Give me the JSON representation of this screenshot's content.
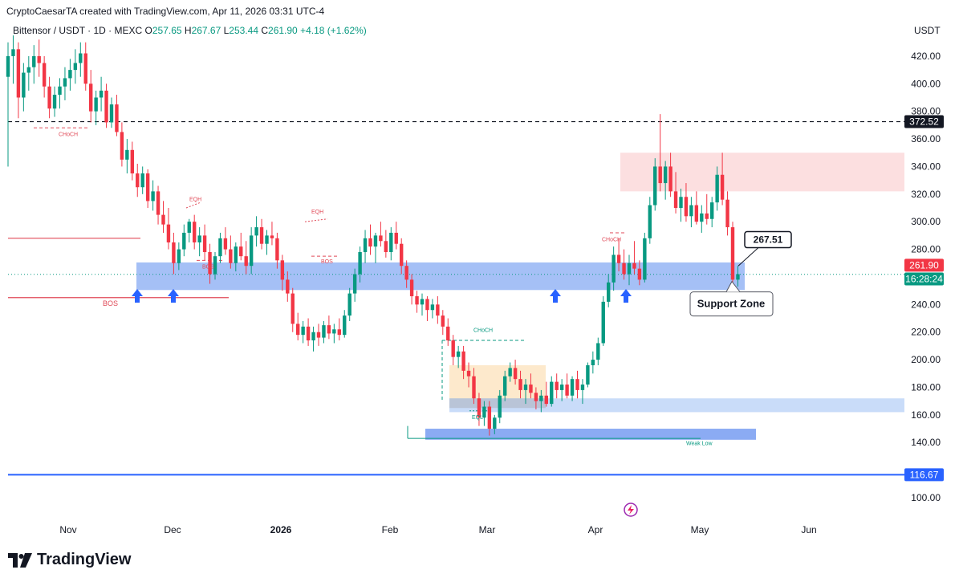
{
  "header": {
    "caption": "CryptoCaesarTA created with TradingView.com, Apr 11, 2026 03:31 UTC-4",
    "symbol": "Bittensor / USDT · 1D · MEXC",
    "o_label": "O",
    "o": "257.65",
    "h_label": "H",
    "h": "267.67",
    "l_label": "L",
    "l": "253.44",
    "c_label": "C",
    "c": "261.90",
    "change": "+4.18 (+1.62%)",
    "currency": "USDT"
  },
  "colors": {
    "up": "#089981",
    "down": "#f23645",
    "support_zone": "#5b8def",
    "supply_zone": "#fbd9da",
    "accumulation": "#fde7c6",
    "blue_line": "#2962ff",
    "arrow": "#2962ff"
  },
  "logo": {
    "text": "TradingView",
    "icon": "tradingview-logo-icon"
  },
  "chart_data": {
    "type": "candlestick",
    "x_ticks": [
      "Nov",
      "Dec",
      "2026",
      "Feb",
      "Mar",
      "Apr",
      "May",
      "Jun"
    ],
    "y_ticks": [
      "420.00",
      "400.00",
      "380.00",
      "360.00",
      "340.00",
      "320.00",
      "300.00",
      "280.00",
      "240.00",
      "220.00",
      "200.00",
      "180.00",
      "160.00",
      "140.00",
      "100.00"
    ],
    "ylim": [
      92,
      436
    ],
    "price_tags": [
      {
        "value": 372.52,
        "text": "372.52",
        "style": "dark"
      },
      {
        "value": 261.9,
        "text": "261.90",
        "style": "red"
      },
      {
        "value": 254.5,
        "text": "16:28:24",
        "style": "green"
      },
      {
        "value": 116.67,
        "text": "116.67",
        "style": "blue"
      }
    ],
    "candles_key": [
      "open",
      "high",
      "low",
      "close"
    ],
    "candles": [
      [
        405,
        430,
        340,
        420
      ],
      [
        420,
        435,
        400,
        425
      ],
      [
        425,
        430,
        375,
        390
      ],
      [
        390,
        415,
        380,
        408
      ],
      [
        408,
        420,
        395,
        412
      ],
      [
        412,
        428,
        400,
        420
      ],
      [
        420,
        432,
        405,
        415
      ],
      [
        415,
        420,
        390,
        398
      ],
      [
        398,
        405,
        375,
        382
      ],
      [
        382,
        398,
        376,
        392
      ],
      [
        392,
        404,
        382,
        398
      ],
      [
        398,
        412,
        388,
        404
      ],
      [
        404,
        418,
        395,
        410
      ],
      [
        410,
        425,
        400,
        415
      ],
      [
        415,
        430,
        405,
        422
      ],
      [
        422,
        430,
        395,
        400
      ],
      [
        400,
        410,
        372,
        380
      ],
      [
        380,
        395,
        370,
        390
      ],
      [
        390,
        405,
        380,
        395
      ],
      [
        395,
        400,
        368,
        372
      ],
      [
        372,
        390,
        368,
        385
      ],
      [
        385,
        392,
        362,
        365
      ],
      [
        365,
        372,
        340,
        345
      ],
      [
        345,
        360,
        335,
        352
      ],
      [
        352,
        358,
        330,
        335
      ],
      [
        335,
        342,
        318,
        325
      ],
      [
        325,
        340,
        320,
        335
      ],
      [
        335,
        338,
        310,
        315
      ],
      [
        315,
        330,
        308,
        322
      ],
      [
        322,
        326,
        298,
        305
      ],
      [
        305,
        315,
        292,
        298
      ],
      [
        298,
        310,
        280,
        285
      ],
      [
        285,
        292,
        262,
        270
      ],
      [
        270,
        285,
        265,
        280
      ],
      [
        280,
        298,
        275,
        292
      ],
      [
        292,
        302,
        285,
        300
      ],
      [
        300,
        305,
        280,
        285
      ],
      [
        285,
        296,
        275,
        290
      ],
      [
        290,
        298,
        272,
        278
      ],
      [
        278,
        284,
        255,
        262
      ],
      [
        262,
        278,
        258,
        275
      ],
      [
        275,
        292,
        270,
        288
      ],
      [
        288,
        296,
        276,
        280
      ],
      [
        280,
        290,
        266,
        270
      ],
      [
        270,
        285,
        264,
        282
      ],
      [
        282,
        292,
        272,
        275
      ],
      [
        275,
        286,
        262,
        268
      ],
      [
        268,
        296,
        262,
        290
      ],
      [
        290,
        304,
        282,
        296
      ],
      [
        296,
        302,
        280,
        284
      ],
      [
        284,
        294,
        276,
        290
      ],
      [
        290,
        300,
        283,
        288
      ],
      [
        288,
        292,
        266,
        272
      ],
      [
        272,
        276,
        250,
        258
      ],
      [
        258,
        264,
        242,
        248
      ],
      [
        248,
        252,
        220,
        226
      ],
      [
        226,
        234,
        214,
        218
      ],
      [
        218,
        228,
        212,
        224
      ],
      [
        224,
        230,
        210,
        214
      ],
      [
        214,
        224,
        206,
        220
      ],
      [
        220,
        226,
        210,
        216
      ],
      [
        216,
        228,
        212,
        225
      ],
      [
        225,
        232,
        215,
        219
      ],
      [
        219,
        226,
        212,
        222
      ],
      [
        222,
        230,
        214,
        218
      ],
      [
        218,
        236,
        216,
        232
      ],
      [
        232,
        252,
        228,
        248
      ],
      [
        248,
        266,
        242,
        262
      ],
      [
        262,
        282,
        256,
        278
      ],
      [
        278,
        294,
        270,
        288
      ],
      [
        288,
        298,
        276,
        282
      ],
      [
        282,
        292,
        270,
        290
      ],
      [
        290,
        300,
        282,
        286
      ],
      [
        286,
        294,
        274,
        278
      ],
      [
        278,
        296,
        272,
        292
      ],
      [
        292,
        300,
        280,
        284
      ],
      [
        284,
        288,
        262,
        268
      ],
      [
        268,
        272,
        252,
        258
      ],
      [
        258,
        262,
        240,
        246
      ],
      [
        246,
        250,
        234,
        240
      ],
      [
        240,
        248,
        232,
        244
      ],
      [
        244,
        246,
        228,
        236
      ],
      [
        236,
        244,
        230,
        240
      ],
      [
        240,
        246,
        226,
        232
      ],
      [
        232,
        236,
        218,
        224
      ],
      [
        224,
        230,
        210,
        214
      ],
      [
        214,
        218,
        196,
        202
      ],
      [
        202,
        210,
        194,
        206
      ],
      [
        206,
        210,
        186,
        192
      ],
      [
        192,
        198,
        180,
        188
      ],
      [
        188,
        194,
        168,
        172
      ],
      [
        172,
        176,
        152,
        158
      ],
      [
        158,
        170,
        152,
        166
      ],
      [
        166,
        170,
        145,
        150
      ],
      [
        150,
        160,
        146,
        158
      ],
      [
        158,
        178,
        154,
        174
      ],
      [
        174,
        192,
        170,
        188
      ],
      [
        188,
        198,
        184,
        194
      ],
      [
        194,
        200,
        182,
        186
      ],
      [
        186,
        192,
        172,
        178
      ],
      [
        178,
        186,
        168,
        182
      ],
      [
        182,
        190,
        172,
        176
      ],
      [
        176,
        180,
        164,
        170
      ],
      [
        170,
        178,
        162,
        174
      ],
      [
        174,
        184,
        166,
        168
      ],
      [
        168,
        188,
        166,
        184
      ],
      [
        184,
        190,
        172,
        178
      ],
      [
        178,
        186,
        170,
        182
      ],
      [
        182,
        190,
        172,
        174
      ],
      [
        174,
        188,
        170,
        186
      ],
      [
        186,
        192,
        172,
        178
      ],
      [
        178,
        186,
        168,
        182
      ],
      [
        182,
        198,
        180,
        196
      ],
      [
        196,
        206,
        190,
        200
      ],
      [
        200,
        216,
        196,
        212
      ],
      [
        212,
        246,
        210,
        242
      ],
      [
        242,
        262,
        238,
        256
      ],
      [
        256,
        282,
        250,
        276
      ],
      [
        276,
        288,
        264,
        270
      ],
      [
        270,
        280,
        258,
        262
      ],
      [
        262,
        276,
        254,
        270
      ],
      [
        270,
        286,
        262,
        266
      ],
      [
        266,
        272,
        254,
        258
      ],
      [
        258,
        292,
        256,
        288
      ],
      [
        288,
        318,
        284,
        312
      ],
      [
        312,
        346,
        308,
        340
      ],
      [
        340,
        378,
        322,
        328
      ],
      [
        328,
        344,
        316,
        340
      ],
      [
        340,
        350,
        318,
        322
      ],
      [
        322,
        336,
        306,
        310
      ],
      [
        310,
        324,
        300,
        318
      ],
      [
        318,
        328,
        300,
        304
      ],
      [
        304,
        318,
        296,
        312
      ],
      [
        312,
        322,
        298,
        300
      ],
      [
        300,
        312,
        292,
        306
      ],
      [
        306,
        320,
        298,
        302
      ],
      [
        302,
        318,
        296,
        314
      ],
      [
        314,
        340,
        308,
        334
      ],
      [
        334,
        350,
        312,
        316
      ],
      [
        316,
        322,
        290,
        296
      ],
      [
        296,
        300,
        254,
        258
      ],
      [
        258,
        268,
        253,
        262
      ]
    ],
    "annotations": [
      {
        "text": "CHoCH",
        "kind": "label",
        "color": "red"
      },
      {
        "text": "EQH",
        "kind": "label",
        "color": "red"
      },
      {
        "text": "BOS",
        "kind": "label",
        "color": "red"
      },
      {
        "text": "BOS",
        "kind": "label",
        "color": "red"
      },
      {
        "text": "EQH",
        "kind": "label",
        "color": "red"
      },
      {
        "text": "BOS",
        "kind": "label",
        "color": "red"
      },
      {
        "text": "CHoCH",
        "kind": "label",
        "color": "green"
      },
      {
        "text": "EQL",
        "kind": "label",
        "color": "green"
      },
      {
        "text": "CHoCH",
        "kind": "label",
        "color": "red"
      },
      {
        "text": "Weak Low",
        "kind": "label",
        "color": "green"
      }
    ],
    "callouts": [
      {
        "text": "267.51"
      },
      {
        "text": "Support Zone"
      }
    ],
    "zones": [
      {
        "name": "support-zone",
        "from": 250.5,
        "to": 270.5
      },
      {
        "name": "supply-zone",
        "from": 322,
        "to": 350
      },
      {
        "name": "accumulation-zone",
        "from": 165,
        "to": 196
      },
      {
        "name": "demand-zone-1",
        "from": 162,
        "to": 172
      },
      {
        "name": "demand-zone-2",
        "from": 142,
        "to": 150
      }
    ],
    "levels": [
      {
        "name": "dashed-level",
        "value": 372.52
      },
      {
        "name": "blue-level",
        "value": 116.67
      }
    ],
    "grid": false,
    "legend": "none"
  }
}
